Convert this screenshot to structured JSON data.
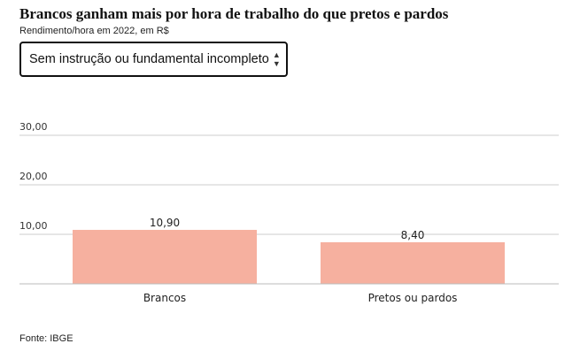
{
  "header": {
    "title": "Brancos ganham mais por hora de trabalho do que pretos e pardos",
    "subtitle": "Rendimento/hora em 2022, em R$"
  },
  "selector": {
    "value": "Sem instrução ou fundamental incompleto",
    "icon": "sort-arrows-icon"
  },
  "footer": {
    "source": "Fonte: IBGE"
  },
  "chart_data": {
    "type": "bar",
    "title": "Brancos ganham mais por hora de trabalho do que pretos e pardos",
    "categories": [
      "Brancos",
      "Pretos ou pardos"
    ],
    "values": [
      10.9,
      8.4
    ],
    "value_labels": [
      "10,90",
      "8,40"
    ],
    "yticks": [
      10,
      20,
      30
    ],
    "ytick_labels": [
      "10,00",
      "20,00",
      "30,00"
    ],
    "ylim": [
      0,
      30
    ],
    "xlabel": "",
    "ylabel": "",
    "grid": true,
    "bar_color": "#f6b09f"
  }
}
